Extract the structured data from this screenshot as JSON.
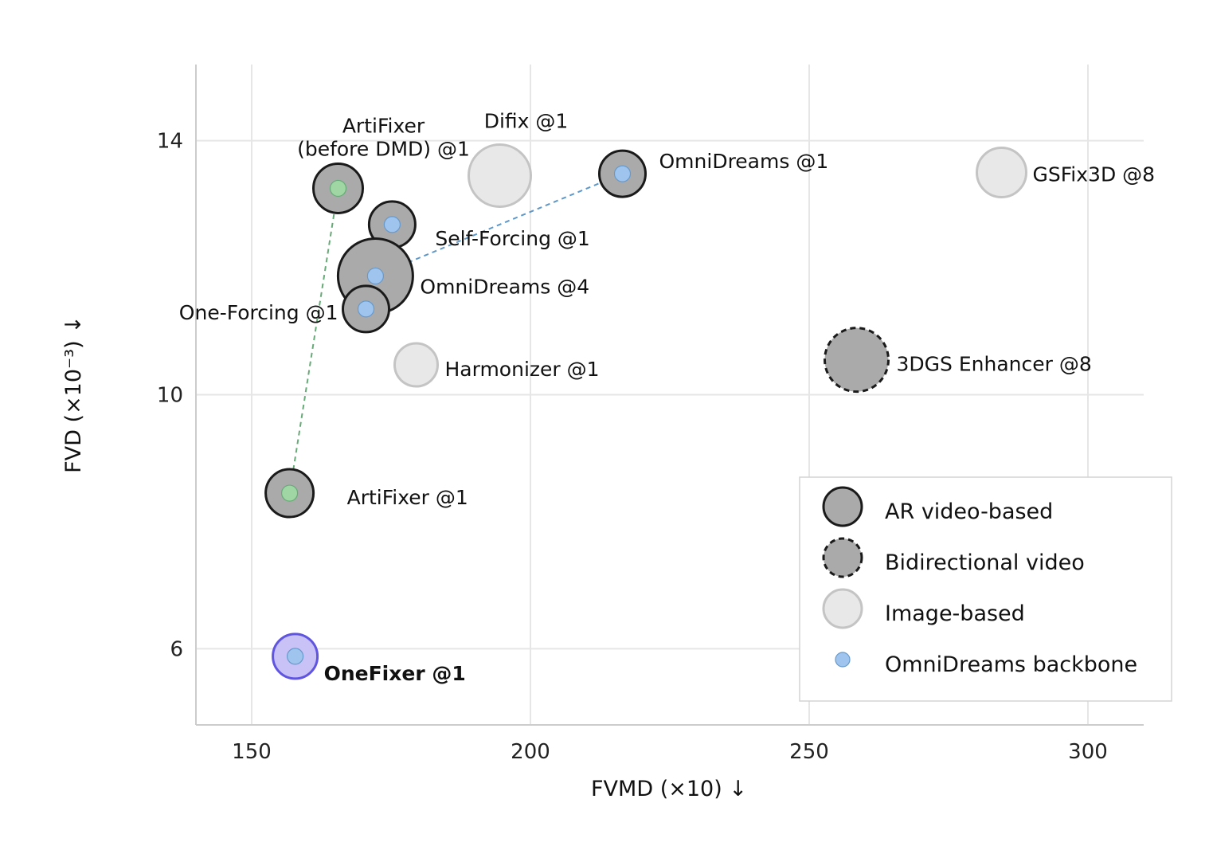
{
  "chart_data": {
    "type": "scatter",
    "xlabel": "FVMD (×10) ↓",
    "ylabel": "FVD (×10⁻³) ↓",
    "xlim": [
      140,
      310
    ],
    "ylim": [
      4.8,
      15.2
    ],
    "xticks": [
      150,
      200,
      250,
      300
    ],
    "yticks": [
      6,
      10,
      14
    ],
    "grid": true,
    "legend_position": "bottom-right",
    "colors": {
      "ar_fill": "#aaaaaa",
      "ar_edge": "#1a1a1a",
      "image_fill": "#e8e8e8",
      "image_edge": "#c4c4c4",
      "omni_dot": "#9fc5ee",
      "omni_dot_edge": "#6699cc",
      "artifixer_dot": "#9fd6a4",
      "artifixer_dot_edge": "#66aa77",
      "onefixer_fill": "#c9c2f7",
      "onefixer_edge": "#5f55e0",
      "link_omni": "#5f98c8",
      "link_artifixer": "#66aa77"
    },
    "points": [
      {
        "id": "artifixer-before-dmd",
        "label": "ArtiFixer\n(before DMD) @1",
        "x": 165.5,
        "y": 13.25,
        "size": 31,
        "type": "ar",
        "inner": "artifixer",
        "bold": false
      },
      {
        "id": "difix",
        "label": "Difix @1",
        "x": 194.5,
        "y": 13.45,
        "size": 39,
        "type": "image",
        "inner": "none",
        "bold": false
      },
      {
        "id": "omnidreams-1",
        "label": "OmniDreams @1",
        "x": 216.5,
        "y": 13.48,
        "size": 29,
        "type": "ar",
        "inner": "omni",
        "bold": false
      },
      {
        "id": "gsfix3d",
        "label": "GSFix3D @8",
        "x": 284.5,
        "y": 13.5,
        "size": 31,
        "type": "image",
        "inner": "none",
        "bold": false
      },
      {
        "id": "self-forcing",
        "label": "Self-Forcing @1",
        "x": 175.2,
        "y": 12.68,
        "size": 29,
        "type": "ar",
        "inner": "omni",
        "bold": false
      },
      {
        "id": "omnidreams-4",
        "label": "OmniDreams @4",
        "x": 172.2,
        "y": 11.87,
        "size": 47,
        "type": "ar",
        "inner": "omni",
        "bold": false
      },
      {
        "id": "one-forcing",
        "label": "One-Forcing @1",
        "x": 170.5,
        "y": 11.35,
        "size": 29,
        "type": "ar",
        "inner": "omni",
        "bold": false
      },
      {
        "id": "harmonizer",
        "label": "Harmonizer @1",
        "x": 179.5,
        "y": 10.47,
        "size": 27,
        "type": "image",
        "inner": "none",
        "bold": false
      },
      {
        "id": "3dgs-enhancer",
        "label": "3DGS Enhancer @8",
        "x": 258.5,
        "y": 10.55,
        "size": 40,
        "type": "bidirectional",
        "inner": "none",
        "bold": false
      },
      {
        "id": "artifixer",
        "label": "ArtiFixer @1",
        "x": 156.8,
        "y": 8.45,
        "size": 30,
        "type": "ar",
        "inner": "artifixer",
        "bold": false
      },
      {
        "id": "onefixer",
        "label": "OneFixer @1",
        "x": 157.8,
        "y": 5.88,
        "size": 28,
        "type": "onefixer",
        "inner": "omni",
        "bold": true
      }
    ],
    "links": [
      {
        "from": "omnidreams-4",
        "to": "omnidreams-1",
        "color": "omni"
      },
      {
        "from": "artifixer-before-dmd",
        "to": "artifixer",
        "color": "artifixer"
      }
    ],
    "legend": [
      {
        "label": "AR video-based",
        "marker": "ar"
      },
      {
        "label": "Bidirectional video",
        "marker": "bidirectional"
      },
      {
        "label": "Image-based",
        "marker": "image"
      },
      {
        "label": "OmniDreams backbone",
        "marker": "omni-dot"
      }
    ]
  }
}
